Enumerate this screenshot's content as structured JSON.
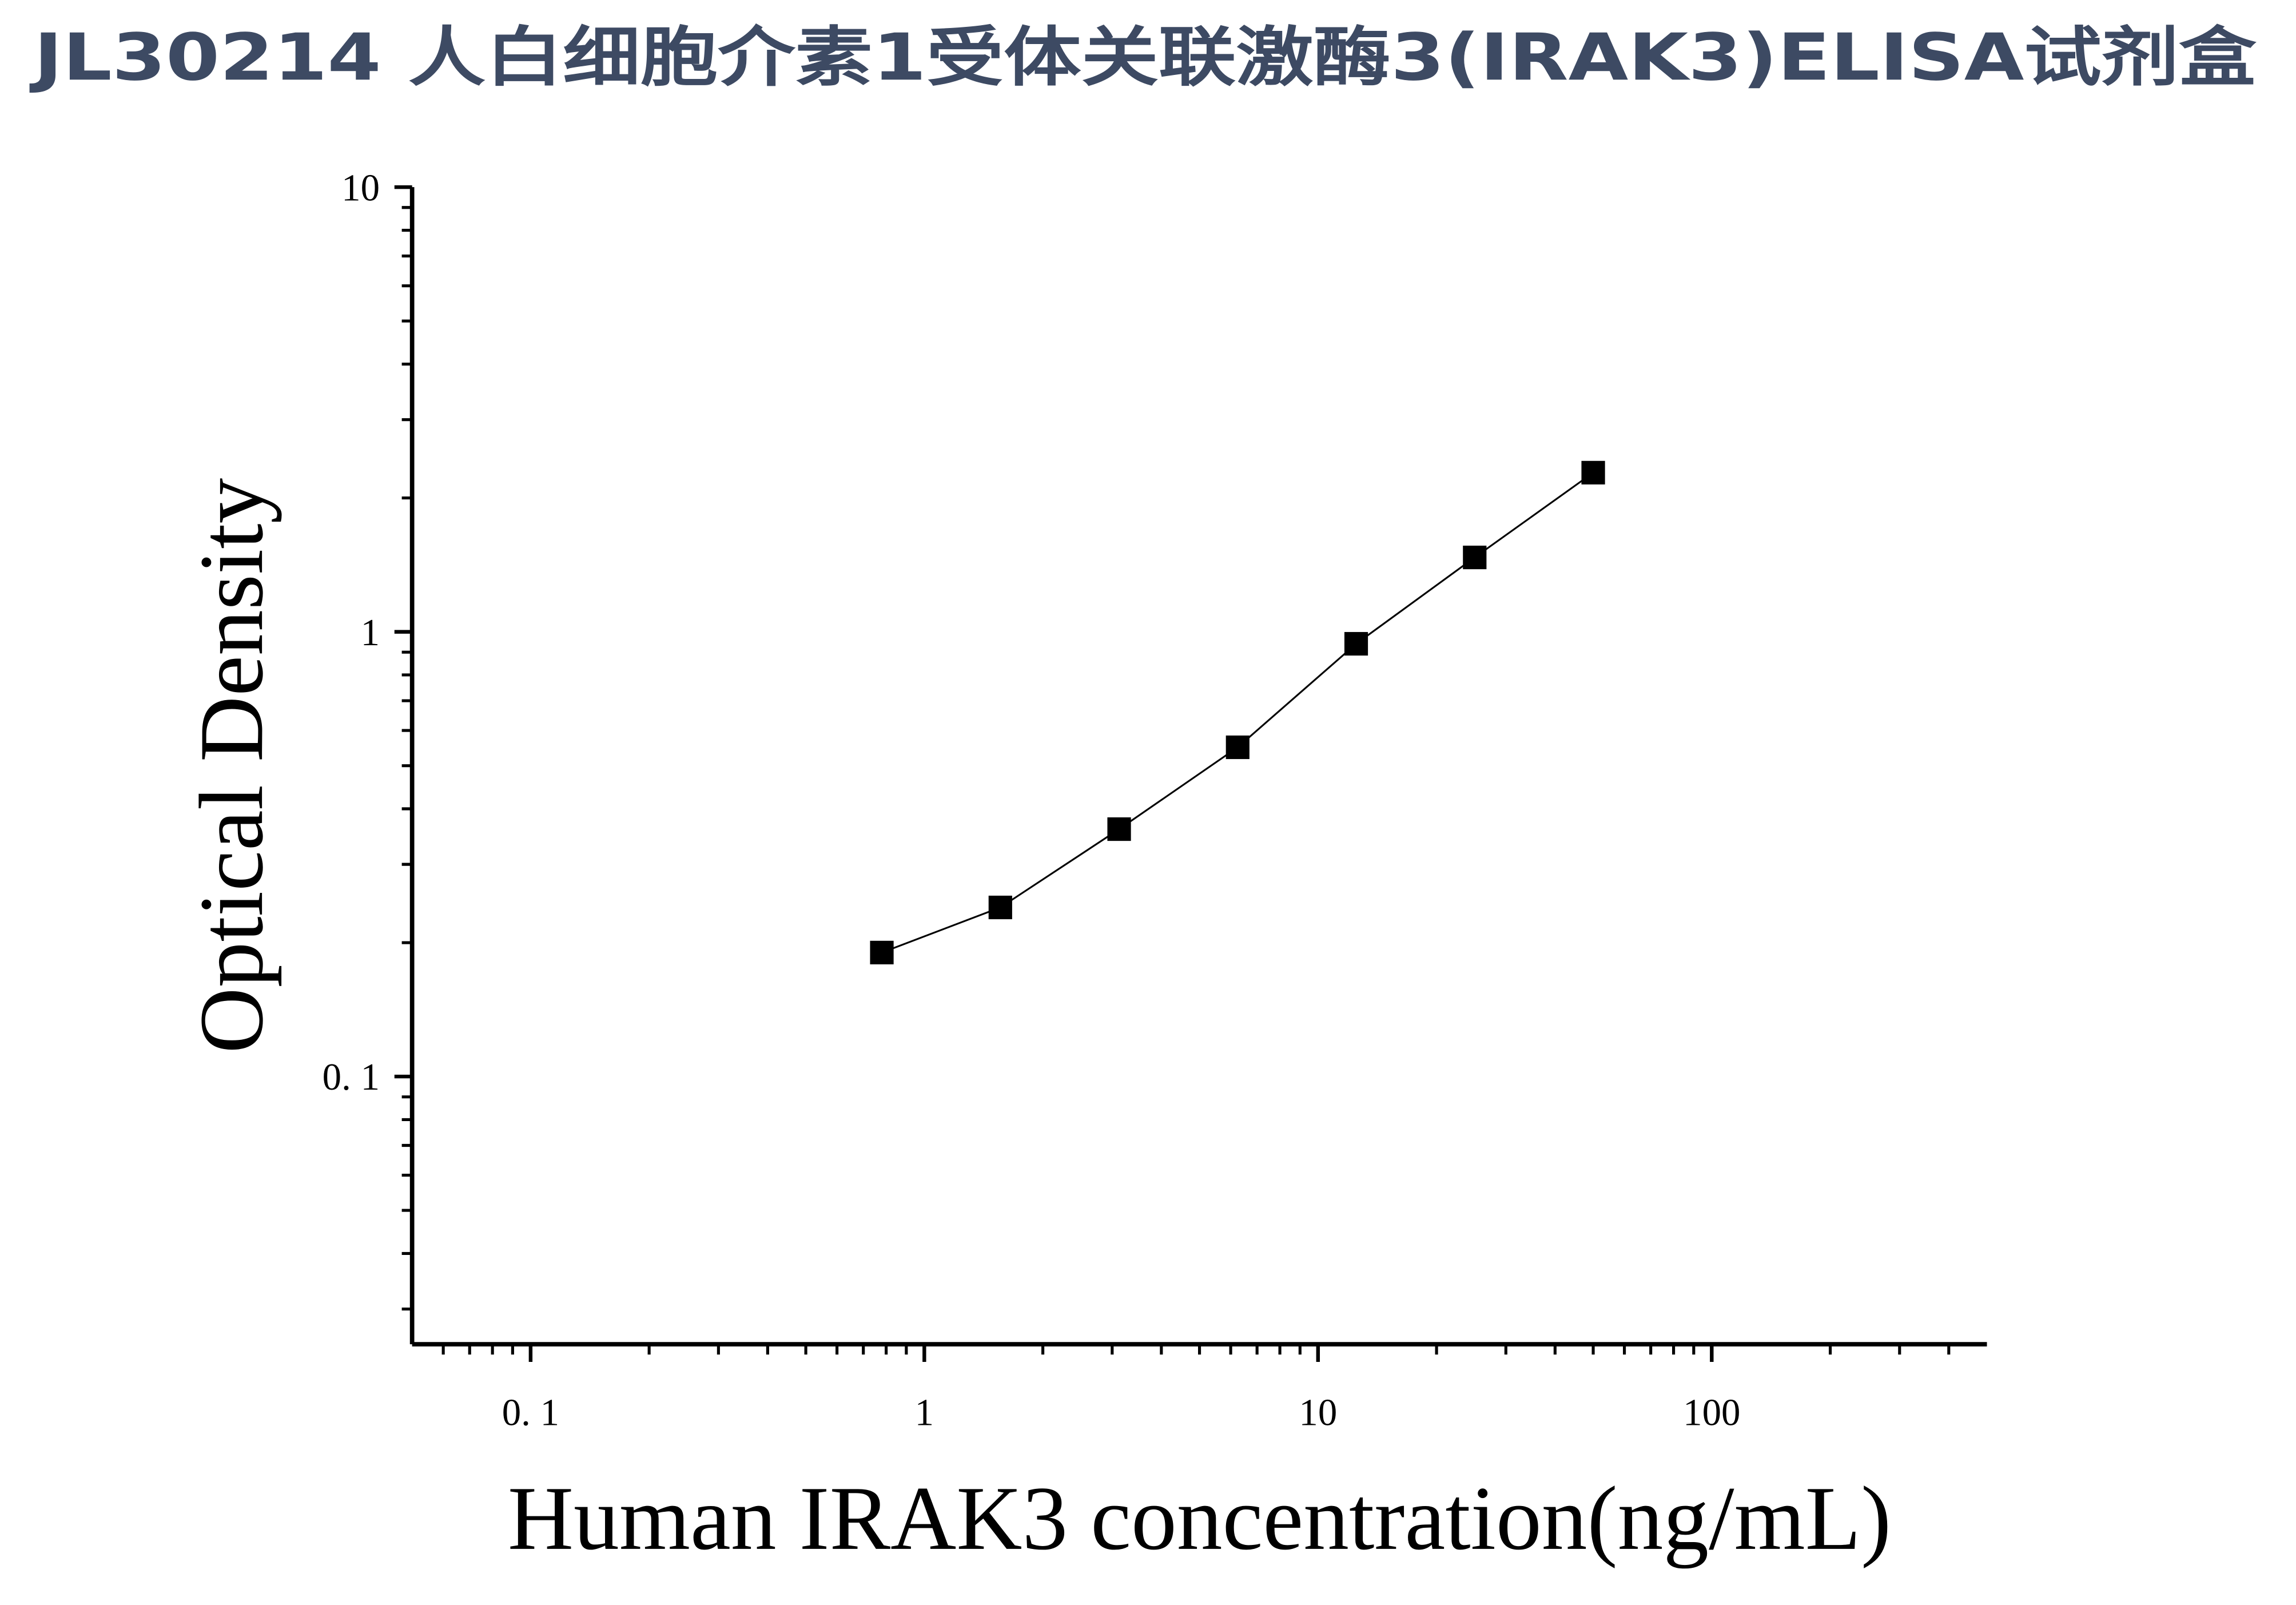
{
  "chart_data": {
    "type": "scatter",
    "title": "JL30214 人白细胞介素1受体关联激酶3(IRAK3)ELISA试剂盒",
    "x_label": "Human IRAK3 concentration(ng/mL)",
    "y_label": "Optical Density",
    "xscale": "log",
    "yscale": "log",
    "xlim": [
      0.05,
      500
    ],
    "ylim": [
      0.025,
      10
    ],
    "xticks": [
      {
        "value": 0.1,
        "label": "0. 1"
      },
      1,
      10,
      100
    ],
    "yticks": [
      {
        "value": 0.1,
        "label": "0. 1"
      },
      1,
      10
    ],
    "xminorticks": [
      0.06,
      0.07,
      0.08,
      0.09,
      0.2,
      0.3,
      0.4,
      0.5,
      0.6,
      0.7,
      0.8,
      0.9,
      2,
      3,
      4,
      5,
      6,
      7,
      8,
      9,
      20,
      30,
      40,
      50,
      60,
      70,
      80,
      90,
      200,
      300,
      400
    ],
    "yminorticks": [
      0.03,
      0.04,
      0.05,
      0.06,
      0.07,
      0.08,
      0.09,
      0.2,
      0.3,
      0.4,
      0.5,
      0.6,
      0.7,
      0.8,
      0.9,
      2,
      3,
      4,
      5,
      6,
      7,
      8,
      9
    ],
    "color": "#000000",
    "x": [
      0.78,
      1.56,
      3.125,
      6.25,
      12.5,
      25,
      50
    ],
    "values": [
      0.19,
      0.24,
      0.36,
      0.55,
      0.94,
      1.47,
      2.28
    ]
  }
}
